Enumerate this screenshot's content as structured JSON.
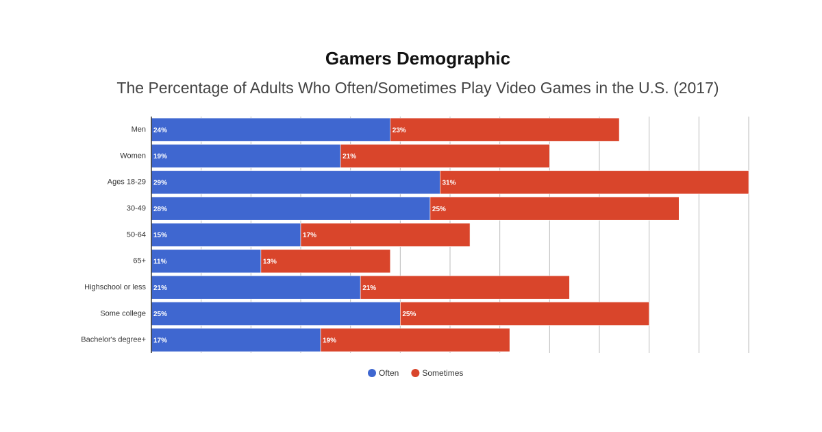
{
  "chart_data": {
    "type": "stacked-bar-horizontal",
    "title": "Gamers Demographic",
    "subtitle": "The Percentage of Adults Who Often/Sometimes Play Video Games in the U.S. (2017)",
    "categories": [
      "Men",
      "Women",
      "Ages 18-29",
      "30-49",
      "50-64",
      "65+",
      "Highschool or less",
      "Some college",
      "Bachelor's degree+"
    ],
    "series": [
      {
        "name": "Often",
        "color": "#3f67d0",
        "values": [
          24,
          19,
          29,
          28,
          15,
          11,
          21,
          25,
          17
        ],
        "value_labels": [
          "24%",
          "19%",
          "29%",
          "28%",
          "15%",
          "11%",
          "21%",
          "25%",
          "17%"
        ]
      },
      {
        "name": "Sometimes",
        "color": "#d9452b",
        "values": [
          23,
          21,
          31,
          25,
          17,
          13,
          21,
          25,
          19
        ],
        "value_labels": [
          "23%",
          "21%",
          "31%",
          "25%",
          "17%",
          "13%",
          "21%",
          "25%",
          "19%"
        ]
      }
    ],
    "xlim": [
      0,
      60
    ],
    "xticks": [
      0,
      5,
      10,
      15,
      20,
      25,
      30,
      35,
      40,
      45,
      50,
      55,
      60
    ],
    "grid": true,
    "legend": "bottom"
  }
}
